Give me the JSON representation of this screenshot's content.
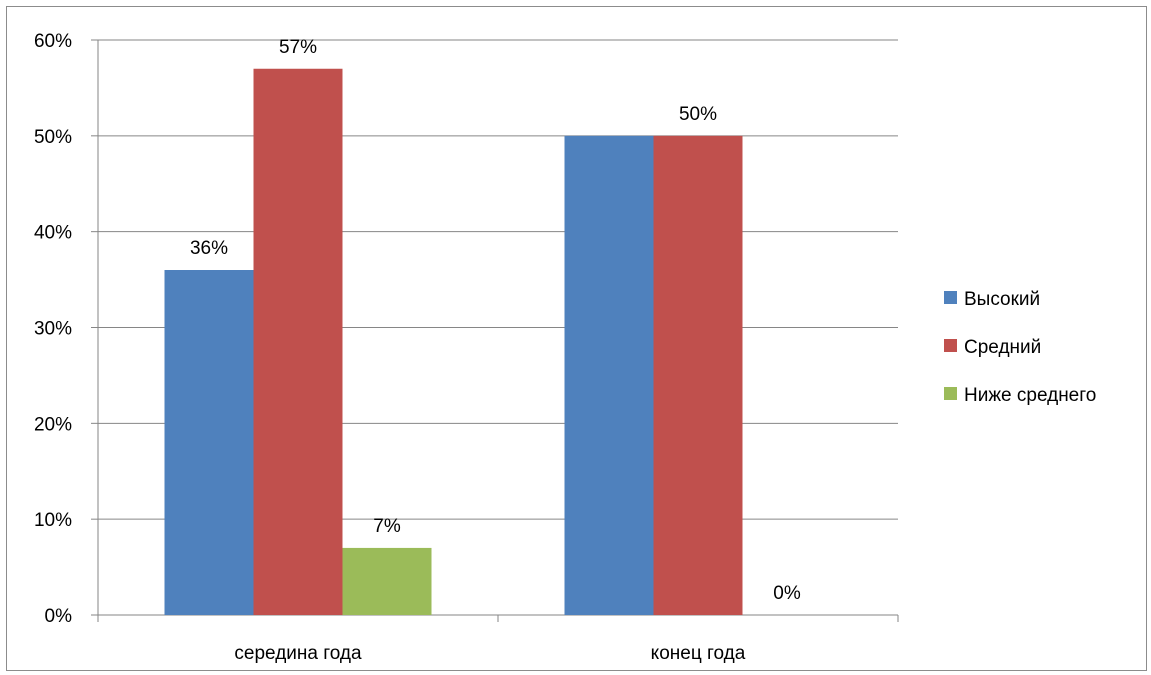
{
  "chart_data": {
    "type": "bar",
    "title": "",
    "xlabel": "",
    "ylabel": "",
    "categories": [
      "середина года",
      "конец года"
    ],
    "series": [
      {
        "name": "Высокий",
        "values": [
          36,
          50
        ],
        "labels": [
          "36%",
          ""
        ],
        "color": "#4f81bd"
      },
      {
        "name": "Средний",
        "values": [
          57,
          50
        ],
        "labels": [
          "57%",
          "50%"
        ],
        "color": "#c0504d"
      },
      {
        "name": "Ниже среднего",
        "values": [
          7,
          0
        ],
        "labels": [
          "7%",
          "0%"
        ],
        "color": "#9bbb59"
      }
    ],
    "ylim": [
      0,
      60
    ],
    "y_ticks": [
      0,
      10,
      20,
      30,
      40,
      50,
      60
    ],
    "y_tick_labels": [
      "0%",
      "10%",
      "20%",
      "30%",
      "40%",
      "50%",
      "60%"
    ],
    "grid": true,
    "legend_position": "right"
  }
}
